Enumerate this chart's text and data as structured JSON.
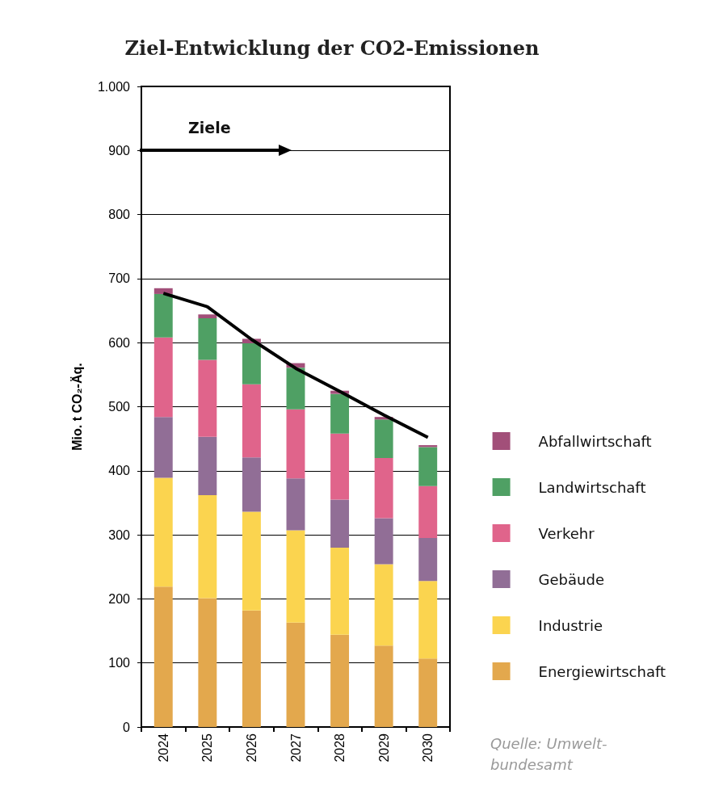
{
  "chart_data": {
    "type": "bar",
    "title": "Ziel-Entwicklung der CO2-Emissionen",
    "ylabel": "Mio. t CO₂-Äq.",
    "categories": [
      "2024",
      "2025",
      "2026",
      "2027",
      "2028",
      "2029",
      "2030"
    ],
    "stacked": true,
    "series": [
      {
        "name": "Energiewirtschaft",
        "color": "#e3a84d",
        "values": [
          219,
          201,
          182,
          163,
          144,
          127,
          107
        ]
      },
      {
        "name": "Industrie",
        "color": "#fbd44f",
        "values": [
          170,
          161,
          154,
          144,
          136,
          127,
          121
        ]
      },
      {
        "name": "Gebäude",
        "color": "#916e96",
        "values": [
          95,
          91,
          85,
          81,
          75,
          72,
          67
        ]
      },
      {
        "name": "Verkehr",
        "color": "#e0648b",
        "values": [
          124,
          120,
          114,
          108,
          103,
          94,
          81
        ]
      },
      {
        "name": "Landwirtschaft",
        "color": "#4fa064",
        "values": [
          68,
          65,
          64,
          65,
          62,
          60,
          61
        ]
      },
      {
        "name": "Abfallwirtschaft",
        "color": "#a24f79",
        "values": [
          9,
          6,
          7,
          7,
          5,
          4,
          3
        ]
      },
      {
        "type": "line",
        "color": "#000000",
        "values": [
          677,
          656,
          605,
          560,
          524,
          487,
          452
        ]
      }
    ],
    "ylim": [
      0,
      1000
    ],
    "yticks": [
      0,
      100,
      200,
      300,
      400,
      500,
      600,
      700,
      800,
      900,
      {
        "value": 1000,
        "label": "1.000"
      }
    ],
    "grid": "y",
    "legend": "right",
    "marker": "none",
    "annotations": [
      "Ziele",
      "Quelle: Umwelt-\nbundesamt"
    ]
  }
}
